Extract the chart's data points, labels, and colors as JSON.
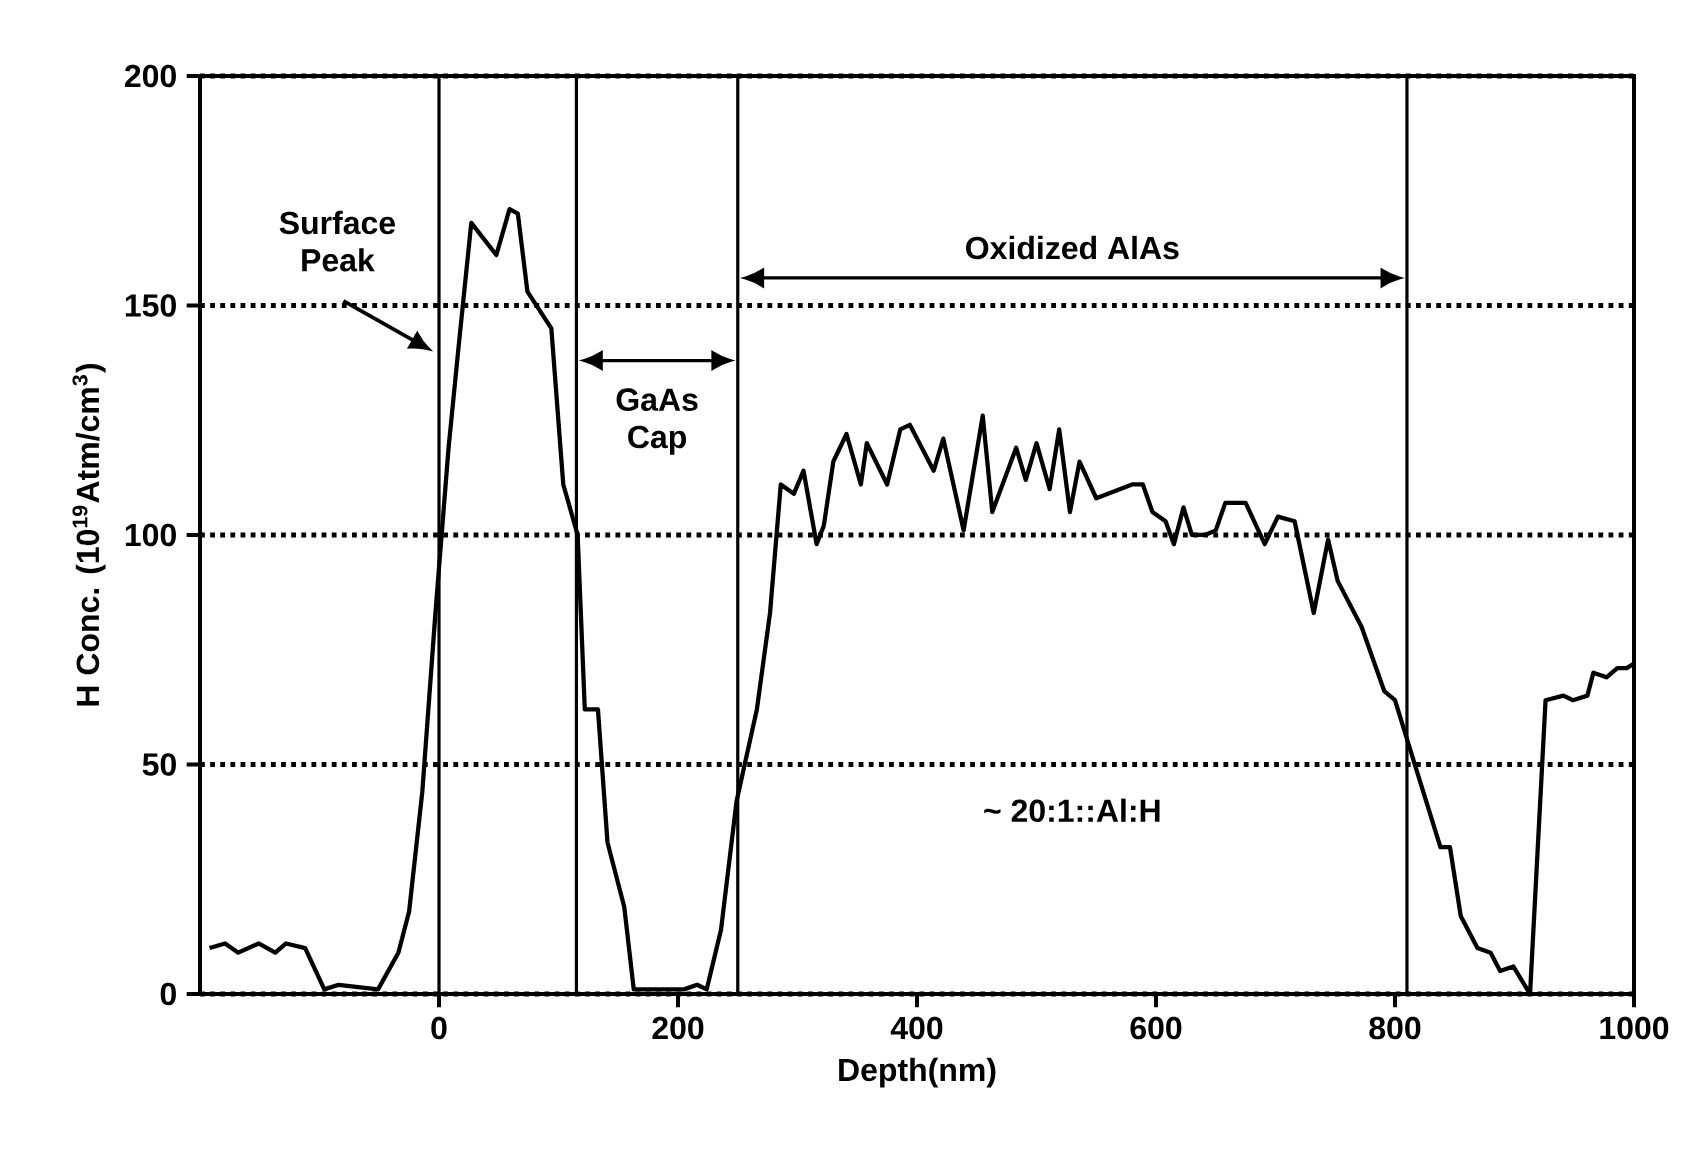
{
  "chart_data": {
    "type": "line",
    "xlabel": "Depth(nm)",
    "ylabel": "H Conc. (10$^{19}$Atm/cm$^{3}$)",
    "xlim": [
      -200,
      1000
    ],
    "xticks": [
      0,
      200,
      400,
      600,
      800,
      1000
    ],
    "ylim": [
      0,
      200
    ],
    "yticks": [
      0,
      50,
      100,
      150,
      200
    ],
    "grid": "y",
    "marker": "none",
    "line_style": "solid",
    "series": [
      {
        "color": "#000000",
        "x": [
          -192,
          -179,
          -168,
          -151,
          -137,
          -128,
          -112,
          -96,
          -84,
          -51,
          -34,
          -25,
          -14,
          -3,
          8,
          16,
          27,
          48,
          59,
          66,
          74,
          94,
          104,
          116,
          122,
          133,
          141,
          155,
          163,
          177,
          205,
          216,
          224,
          236,
          249,
          266,
          277,
          286,
          297,
          305,
          316,
          322,
          330,
          341,
          353,
          358,
          375,
          386,
          394,
          414,
          422,
          439,
          455,
          463,
          483,
          491,
          500,
          511,
          519,
          528,
          536,
          550,
          580,
          589,
          597,
          608,
          615,
          623,
          630,
          641,
          650,
          658,
          675,
          691,
          702,
          716,
          732,
          744,
          752,
          772,
          791,
          800,
          813,
          838,
          846,
          855,
          869,
          880,
          888,
          899,
          913,
          926,
          941,
          949,
          961,
          966,
          977,
          986,
          994,
          1000
        ],
        "values": [
          10,
          11,
          9,
          11,
          9,
          11,
          10,
          1,
          2,
          1,
          9,
          18,
          44,
          83,
          119,
          140,
          168,
          161,
          171,
          170,
          153,
          145,
          111,
          100,
          62,
          62,
          33,
          19,
          1,
          1,
          1,
          2,
          1,
          14,
          42,
          62,
          83,
          111,
          109,
          114,
          98,
          102,
          116,
          122,
          111,
          120,
          111,
          123,
          124,
          114,
          121,
          101,
          126,
          105,
          119,
          112,
          120,
          110,
          123,
          105,
          116,
          108,
          111,
          111,
          105,
          103,
          98,
          106,
          100,
          100,
          101,
          107,
          107,
          98,
          104,
          103,
          83,
          99,
          90,
          80,
          66,
          64,
          53,
          32,
          32,
          17,
          10,
          9,
          5,
          6,
          0,
          64,
          65,
          64,
          65,
          70,
          69,
          71,
          71,
          72
        ]
      }
    ],
    "ref_lines": [
      {
        "axis": "x",
        "value": 0
      },
      {
        "axis": "x",
        "value": 115
      },
      {
        "axis": "x",
        "value": 250
      },
      {
        "axis": "x",
        "value": 810
      }
    ],
    "annotations": [
      "Surface Peak",
      "GaAs Cap",
      "Oxidized AlAs",
      "~ 20:1::Al:H"
    ]
  }
}
